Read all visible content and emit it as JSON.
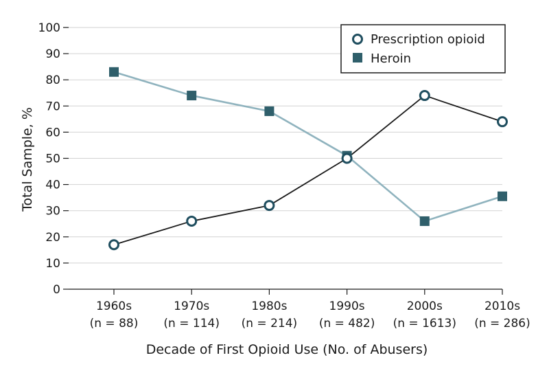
{
  "chart_data": {
    "type": "line",
    "xlabel": "Decade of First Opioid Use (No. of Abusers)",
    "ylabel": "Total Sample, %",
    "ylim": [
      0,
      100
    ],
    "yticks": [
      "0",
      "10",
      "20",
      "30",
      "40",
      "50",
      "60",
      "70",
      "80",
      "90",
      "100"
    ],
    "categories": [
      "1960s",
      "1970s",
      "1980s",
      "1990s",
      "2000s",
      "2010s"
    ],
    "category_counts": [
      "(n = 88)",
      "(n = 114)",
      "(n = 214)",
      "(n = 482)",
      "(n = 1613)",
      "(n = 286)"
    ],
    "grid": "horizontal",
    "legend_position": "top-right",
    "series": [
      {
        "name": "Prescription opioid",
        "marker": "open-circle",
        "color": "#1f4e5f",
        "line_color": "#1a1a1a",
        "values": [
          17,
          26,
          32,
          50,
          74,
          64
        ]
      },
      {
        "name": "Heroin",
        "marker": "filled-square",
        "color": "#2f5f6b",
        "line_color": "#8fb3be",
        "values": [
          83,
          74,
          68,
          51,
          26,
          35.5
        ]
      }
    ]
  }
}
